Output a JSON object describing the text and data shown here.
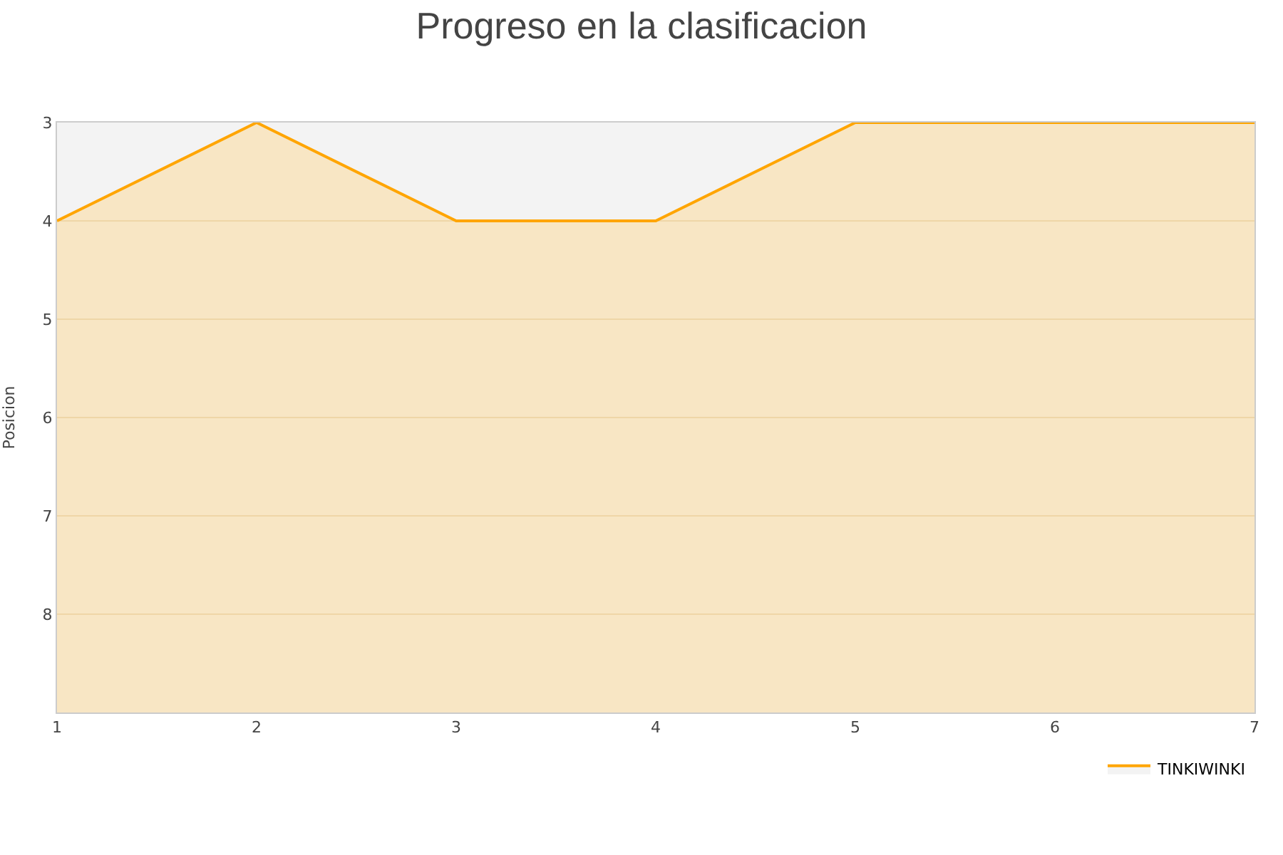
{
  "chart_data": {
    "type": "area",
    "title": "Progreso en la clasificacion",
    "ylabel": "Posicion",
    "x": [
      1,
      2,
      3,
      4,
      5,
      6,
      7
    ],
    "series": [
      {
        "name": "TINKIWINKI",
        "color": "#ffa500",
        "values": [
          4,
          3,
          4,
          4,
          3,
          3,
          3
        ]
      }
    ],
    "xlim": [
      1,
      7
    ],
    "xticks": [
      1,
      2,
      3,
      4,
      5,
      6,
      7
    ],
    "ylim": [
      9,
      3
    ],
    "yticks": [
      3,
      4,
      5,
      6,
      7,
      8
    ],
    "grid": "y",
    "legend": "bottom right",
    "marker": "none"
  }
}
